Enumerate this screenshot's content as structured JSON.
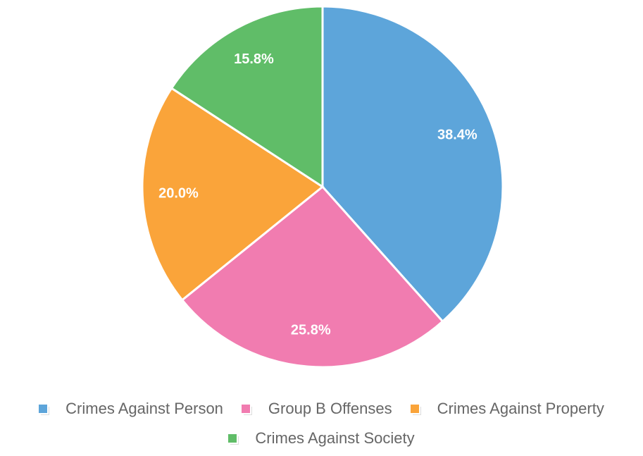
{
  "chart_data": {
    "type": "pie",
    "categories": [
      "Crimes Against Person",
      "Group B Offenses",
      "Crimes Against Property",
      "Crimes Against Society"
    ],
    "values": [
      38.4,
      25.8,
      20.0,
      15.8
    ],
    "value_labels": [
      "38.4%",
      "25.8%",
      "20.0%",
      "15.8%"
    ],
    "colors": [
      "#5da5da",
      "#f17cb0",
      "#faa43a",
      "#60bd68"
    ],
    "legend": "bottom"
  }
}
